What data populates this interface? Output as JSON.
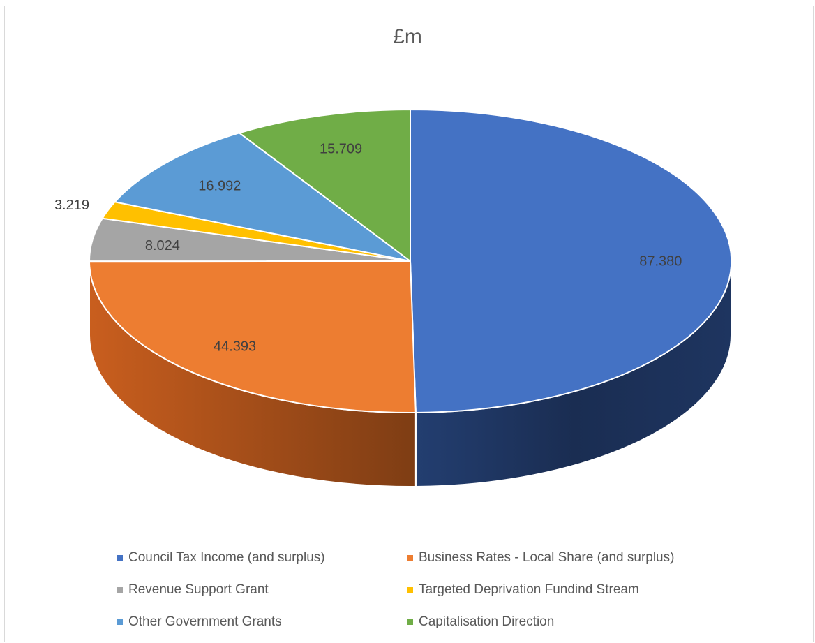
{
  "chart_data": {
    "type": "pie",
    "title": "£m",
    "three_d": true,
    "legend_position": "bottom",
    "slices": [
      {
        "label": "Council Tax Income (and surplus)",
        "value": 87.38,
        "display": "87.380",
        "color": "#4472C4"
      },
      {
        "label": "Business Rates - Local Share (and surplus)",
        "value": 44.393,
        "display": "44.393",
        "color": "#ED7D31"
      },
      {
        "label": "Revenue Support Grant",
        "value": 8.024,
        "display": "8.024",
        "color": "#A5A5A5"
      },
      {
        "label": "Targeted Deprivation Fundind Stream",
        "value": 3.219,
        "display": "3.219",
        "color": "#FFC000"
      },
      {
        "label": "Other Government Grants",
        "value": 16.992,
        "display": "16.992",
        "color": "#5B9BD5"
      },
      {
        "label": "Capitalisation Direction",
        "value": 15.709,
        "display": "15.709",
        "color": "#70AD47"
      }
    ]
  }
}
